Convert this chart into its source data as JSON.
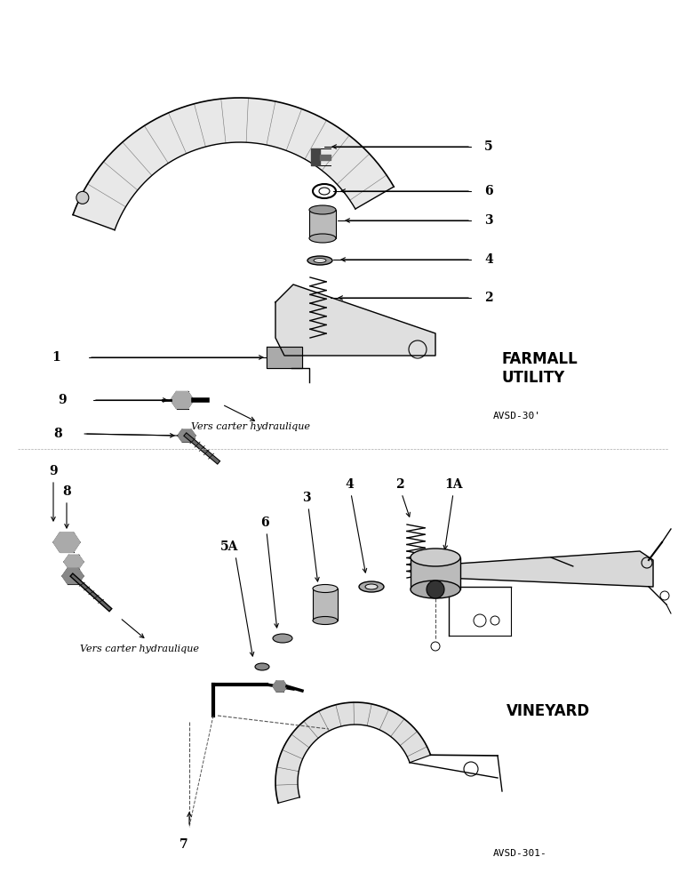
{
  "bg_color": "#ffffff",
  "fig_width": 7.72,
  "fig_height": 10.0,
  "dpi": 100,
  "top_label": "FARMALL\nUTILITY",
  "top_ref": "AVSD-30'",
  "bottom_label": "VINEYARD",
  "bottom_ref": "AVSD-301-",
  "vers_text": "Vers carter hydraulique"
}
